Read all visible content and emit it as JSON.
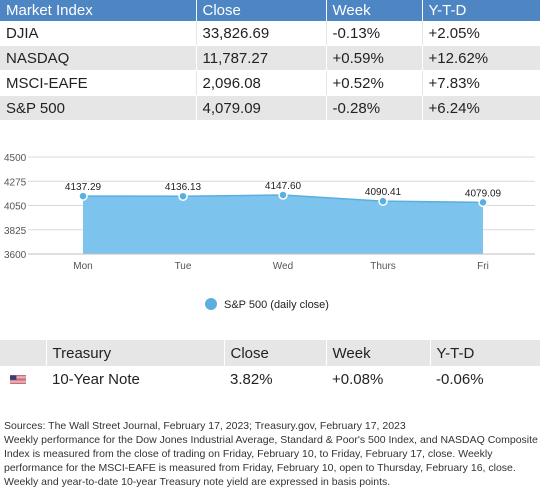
{
  "market_table": {
    "headers": [
      "Market Index",
      "Close",
      "Week",
      "Y-T-D"
    ],
    "rows": [
      {
        "index": "DJIA",
        "close": "33,826.69",
        "week": "-0.13%",
        "ytd": "+2.05%"
      },
      {
        "index": "NASDAQ",
        "close": "11,787.27",
        "week": "+0.59%",
        "ytd": "+12.62%"
      },
      {
        "index": "MSCI-EAFE",
        "close": "2,096.08",
        "week": "+0.52%",
        "ytd": "+7.83%"
      },
      {
        "index": "S&P 500",
        "close": "4,079.09",
        "week": "-0.28%",
        "ytd": "+6.24%"
      }
    ]
  },
  "chart_data": {
    "type": "area",
    "categories": [
      "Mon",
      "Tue",
      "Wed",
      "Thurs",
      "Fri"
    ],
    "series": [
      {
        "name": "S&P 500 (daily close)",
        "values": [
          4137.29,
          4136.13,
          4147.6,
          4090.41,
          4079.09
        ]
      }
    ],
    "data_labels": [
      "4137.29",
      "4136.13",
      "4147.60",
      "4090.41",
      "4079.09"
    ],
    "yticks": [
      3600,
      3825,
      4050,
      4275,
      4500
    ],
    "ylim": [
      3600,
      4500
    ],
    "grid": true,
    "legend": "bottom",
    "colors": {
      "fill": "#7cc3ee",
      "line": "#5aaee0",
      "marker": "#5aaee0"
    }
  },
  "treasury_table": {
    "headers": [
      "",
      "Treasury",
      "Close",
      "Week",
      "Y-T-D"
    ],
    "row": {
      "flag": "us-flag-icon",
      "name": "10-Year Note",
      "close": "3.82%",
      "week": "+0.08%",
      "ytd": "-0.06%"
    }
  },
  "notes": [
    "Sources: The Wall Street Journal, February 17, 2023; Treasury.gov, February 17, 2023",
    "Weekly performance for the Dow Jones Industrial Average, Standard & Poor's 500 Index, and NASDAQ Composite Index is measured from the close of trading on Friday, February 10, to Friday, February 17, close. Weekly performance for the MSCI-EAFE is measured from Friday, February 10, open to Thursday, February 16, close. Weekly and year-to-date 10-year Treasury note yield are expressed in basis points."
  ]
}
